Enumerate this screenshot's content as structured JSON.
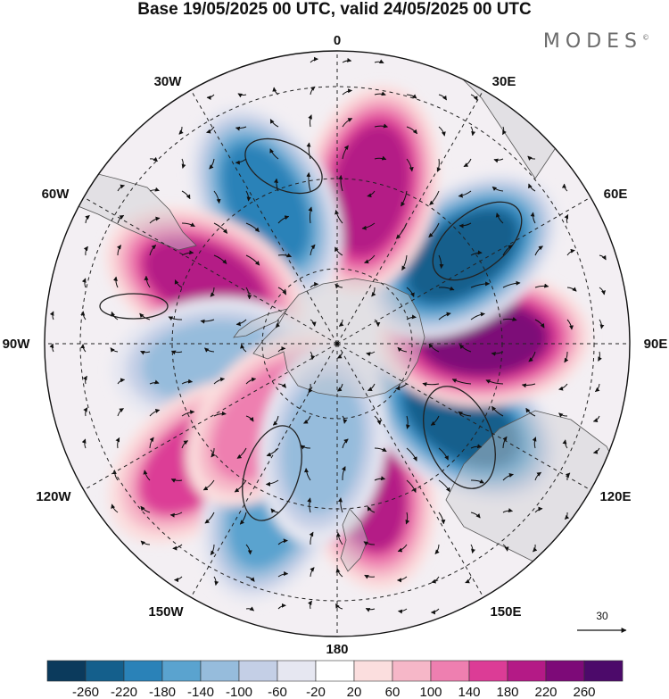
{
  "title": "Base 19/05/2025 00 UTC, valid 24/05/2025 00 UTC",
  "brand": "MODES",
  "brand_mark": "©",
  "projection": "south-polar-stereographic",
  "meridian_labels": {
    "top": "0",
    "e30": "30E",
    "e60": "60E",
    "e90": "90E",
    "e120": "120E",
    "e150": "150E",
    "bottom": "180",
    "w150": "150W",
    "w120": "120W",
    "w90": "90W",
    "w60": "60W",
    "w30": "30W"
  },
  "reference_vector": {
    "value": "30"
  },
  "colorbar": {
    "ticks": [
      "-260",
      "-220",
      "-180",
      "-140",
      "-100",
      "-60",
      "-20",
      "20",
      "60",
      "100",
      "140",
      "180",
      "220",
      "260"
    ],
    "colors": [
      "#0b3a5c",
      "#145f8c",
      "#2a82b8",
      "#5aa3cf",
      "#96bcdc",
      "#c4cfe6",
      "#e6e7f1",
      "#ffffff",
      "#fbdede",
      "#f6b7c8",
      "#ee7fb0",
      "#dc3c96",
      "#b41a86",
      "#7d0a78",
      "#4c0a6a"
    ]
  },
  "anomaly_centers": [
    {
      "lon": 12,
      "lat": -50,
      "value": 180
    },
    {
      "lon": 58,
      "lat": -50,
      "value": -240
    },
    {
      "lon": 92,
      "lat": -50,
      "value": 230
    },
    {
      "lon": 125,
      "lat": -48,
      "value": -240
    },
    {
      "lon": 168,
      "lat": -47,
      "value": 210
    },
    {
      "lon": -153,
      "lat": -47,
      "value": -200
    },
    {
      "lon": -115,
      "lat": -50,
      "value": 190
    },
    {
      "lon": -82,
      "lat": -55,
      "value": -120
    },
    {
      "lon": -50,
      "lat": -40,
      "value": 140
    },
    {
      "lon": -22,
      "lat": -43,
      "value": -170
    },
    {
      "lon": -42,
      "lat": -62,
      "value": 130
    },
    {
      "lon": -8,
      "lat": -62,
      "value": -120
    }
  ]
}
